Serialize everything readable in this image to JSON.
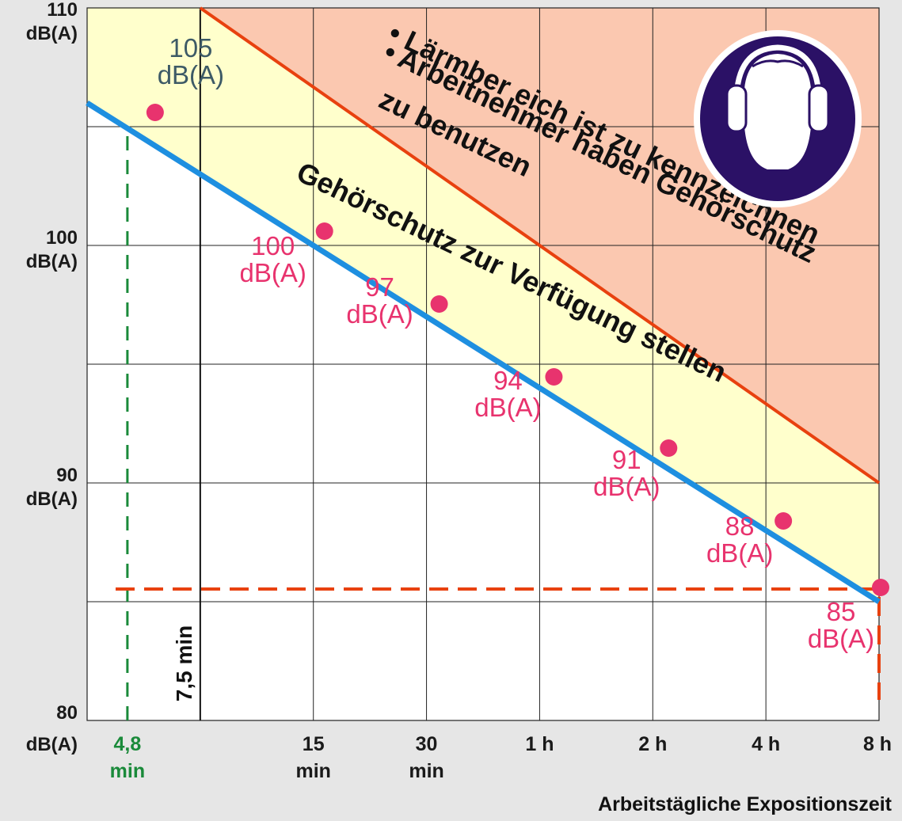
{
  "chart_data": {
    "type": "line",
    "title": "",
    "xlabel": "Arbeitstägliche Expositionszeit",
    "ylabel": "",
    "y_axis": {
      "range": [
        80,
        110
      ],
      "ticks": [
        {
          "value": 110,
          "line1": "110",
          "line2": "dB(A)"
        },
        {
          "value": 100,
          "line1": "100",
          "line2": "dB(A)"
        },
        {
          "value": 90,
          "line1": "90",
          "line2": "dB(A)"
        },
        {
          "value": 80,
          "line1": "80",
          "line2": "dB(A)"
        }
      ]
    },
    "x_axis": {
      "scale": "log2",
      "range_minutes": [
        3.75,
        480
      ],
      "ticks": [
        {
          "minutes": 4.8,
          "line1": "4,8",
          "line2": "min",
          "highlight": true
        },
        {
          "minutes": 15,
          "line1": "15",
          "line2": "min"
        },
        {
          "minutes": 30,
          "line1": "30",
          "line2": "min"
        },
        {
          "minutes": 60,
          "line1": "1 h",
          "line2": ""
        },
        {
          "minutes": 120,
          "line1": "2 h",
          "line2": ""
        },
        {
          "minutes": 240,
          "line1": "4 h",
          "line2": ""
        },
        {
          "minutes": 480,
          "line1": "8 h",
          "line2": ""
        }
      ],
      "marker": {
        "minutes": 7.5,
        "label": "7,5 min"
      }
    },
    "series": [
      {
        "values": [
          {
            "minutes": 4.8,
            "db": 105,
            "label_value": "105",
            "label_unit": "dB(A)"
          },
          {
            "minutes": 15,
            "db": 100,
            "label_value": "100",
            "label_unit": "dB(A)"
          },
          {
            "minutes": 30,
            "db": 97,
            "label_value": "97",
            "label_unit": "dB(A)"
          },
          {
            "minutes": 60,
            "db": 94,
            "label_value": "94",
            "label_unit": "dB(A)"
          },
          {
            "minutes": 120,
            "db": 91,
            "label_value": "91",
            "label_unit": "dB(A)"
          },
          {
            "minutes": 240,
            "db": 88,
            "label_value": "88",
            "label_unit": "dB(A)"
          },
          {
            "minutes": 480,
            "db": 85,
            "label_value": "85",
            "label_unit": "dB(A)"
          }
        ]
      }
    ],
    "lines": {
      "lower_action_value": {
        "from": {
          "minutes": 3.75,
          "db": 106
        },
        "to": {
          "minutes": 480,
          "db": 85
        },
        "color": "#1e8fe0"
      },
      "upper_action_value": {
        "from": {
          "minutes": 7.5,
          "db": 110
        },
        "to": {
          "minutes": 480,
          "db": 90
        },
        "color": "#e8410f"
      }
    },
    "reference_lines": {
      "horizontal_85": {
        "db": 85,
        "color": "#e8410f"
      },
      "vertical_green": {
        "minutes": 4.8,
        "color": "#1a8a3a"
      }
    },
    "zones": {
      "yellow_fill": "#ffffcc",
      "red_fill": "#fbc8b0"
    },
    "annotations": {
      "lower_zone_text": "Gehörschutz zur Verfügung stellen",
      "upper_zone_line1_a": "Lärmber eich ist zu kennzeichnen",
      "upper_zone_line1_b": "Arbeitnehmer haben Gehörschutz",
      "upper_zone_line2": "zu benutzen",
      "bullet": "•"
    },
    "sign": {
      "icon": "hearing-protection-icon",
      "circle_color": "#2b1166",
      "border_color": "#ffffff"
    },
    "grid": true
  }
}
